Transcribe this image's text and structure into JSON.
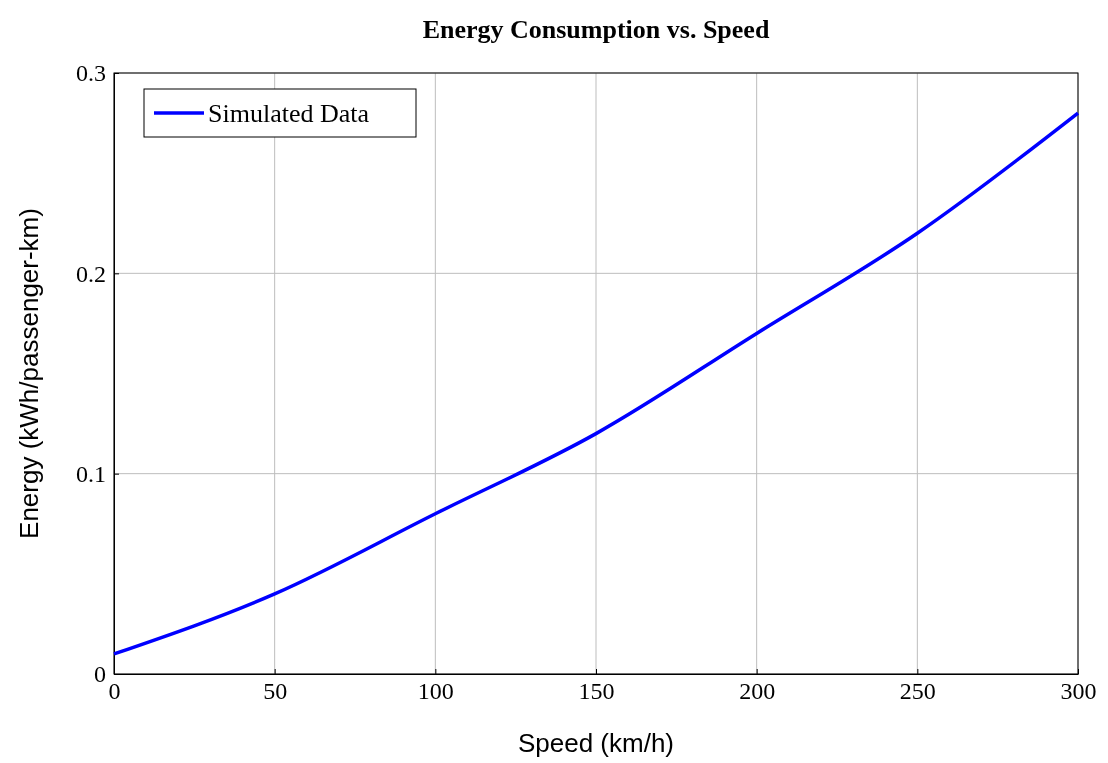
{
  "chart_data": {
    "type": "line",
    "title": "Energy Consumption vs. Speed",
    "xlabel": "Speed (km/h)",
    "ylabel": "Energy (kWh/passenger-km)",
    "x": [
      0,
      50,
      100,
      150,
      200,
      250,
      300
    ],
    "series": [
      {
        "name": "Simulated Data",
        "color": "#0000ff",
        "values": [
          0.01,
          0.04,
          0.08,
          0.12,
          0.17,
          0.22,
          0.28
        ]
      }
    ],
    "xlim": [
      0,
      300
    ],
    "xticks": [
      0,
      50,
      100,
      150,
      200,
      250,
      300
    ],
    "ylim": [
      0,
      0.3
    ],
    "yticks": [
      0,
      0.1,
      0.2,
      0.3
    ],
    "grid": true,
    "legend": "top left",
    "marker": "none",
    "line_style": "solid"
  }
}
